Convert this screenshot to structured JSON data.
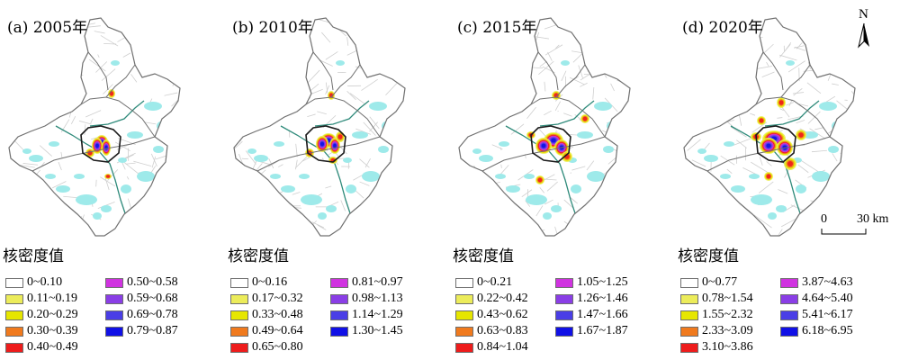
{
  "panels": [
    {
      "title": "(a) 2005年"
    },
    {
      "title": "(b) 2010年"
    },
    {
      "title": "(c) 2015年"
    },
    {
      "title": "(d) 2020年"
    }
  ],
  "legend": {
    "title": "核密度值",
    "classes_by_panel": [
      [
        "0~0.10",
        "0.11~0.19",
        "0.20~0.29",
        "0.30~0.39",
        "0.40~0.49",
        "0.50~0.58",
        "0.59~0.68",
        "0.69~0.78",
        "0.79~0.87"
      ],
      [
        "0~0.16",
        "0.17~0.32",
        "0.33~0.48",
        "0.49~0.64",
        "0.65~0.80",
        "0.81~0.97",
        "0.98~1.13",
        "1.14~1.29",
        "1.30~1.45"
      ],
      [
        "0~0.21",
        "0.22~0.42",
        "0.43~0.62",
        "0.63~0.83",
        "0.84~1.04",
        "1.05~1.25",
        "1.26~1.46",
        "1.47~1.66",
        "1.67~1.87"
      ],
      [
        "0~0.77",
        "0.78~1.54",
        "1.55~2.32",
        "2.33~3.09",
        "3.10~3.86",
        "3.87~4.63",
        "4.64~5.40",
        "5.41~6.17",
        "6.18~6.95"
      ]
    ],
    "colors": [
      "#ffffff",
      "#ecec5a",
      "#e6e600",
      "#f07a1e",
      "#ee1c1c",
      "#d033e0",
      "#8a3ee6",
      "#4a3ee6",
      "#1010e6"
    ]
  },
  "north_arrow": {
    "letter": "N"
  },
  "scale_bar": {
    "start": "0",
    "end": "30 km"
  },
  "map_colors": {
    "boundary": "#707070",
    "roads": "#cfcfcf",
    "water": "#9eeaea",
    "river": "#2e8a7a",
    "core": "#1c1c1c"
  }
}
